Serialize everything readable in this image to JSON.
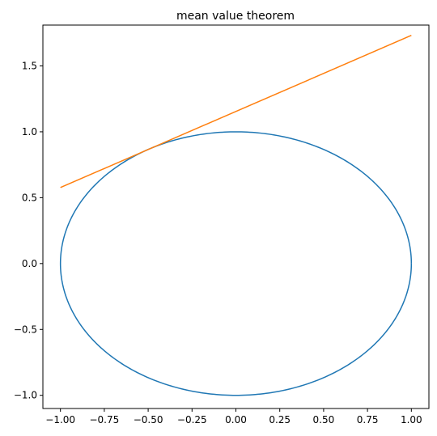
{
  "chart_data": {
    "type": "line",
    "title": "mean value theorem",
    "xlabel": "",
    "ylabel": "",
    "xlim": [
      -1.1,
      1.1
    ],
    "ylim": [
      -1.1,
      1.81
    ],
    "xticks": [
      -1.0,
      -0.75,
      -0.5,
      -0.25,
      0.0,
      0.25,
      0.5,
      0.75,
      1.0
    ],
    "xtick_labels": [
      "−1.00",
      "−0.75",
      "−0.50",
      "−0.25",
      "0.00",
      "0.25",
      "0.50",
      "0.75",
      "1.00"
    ],
    "yticks": [
      -1.0,
      -0.5,
      0.0,
      0.5,
      1.0,
      1.5
    ],
    "ytick_labels": [
      "−1.0",
      "−0.5",
      "0.0",
      "0.5",
      "1.0",
      "1.5"
    ],
    "grid": false,
    "legend": "none",
    "series": [
      {
        "color": "#1f77b4",
        "kind": "parametric",
        "x_expr": "cos(t)",
        "y_expr": "sin(t)",
        "t_range": [
          0,
          6.2832
        ],
        "points": [
          [
            1.0,
            0.0
          ],
          [
            0.707,
            0.707
          ],
          [
            0.0,
            1.0
          ],
          [
            -0.707,
            0.707
          ],
          [
            -1.0,
            0.0
          ],
          [
            -0.707,
            -0.707
          ],
          [
            0.0,
            -1.0
          ],
          [
            0.707,
            -0.707
          ],
          [
            1.0,
            0.0
          ]
        ]
      },
      {
        "color": "#ff7f0e",
        "kind": "line",
        "points": [
          [
            -1.0,
            0.577
          ],
          [
            1.0,
            1.732
          ]
        ]
      }
    ]
  }
}
